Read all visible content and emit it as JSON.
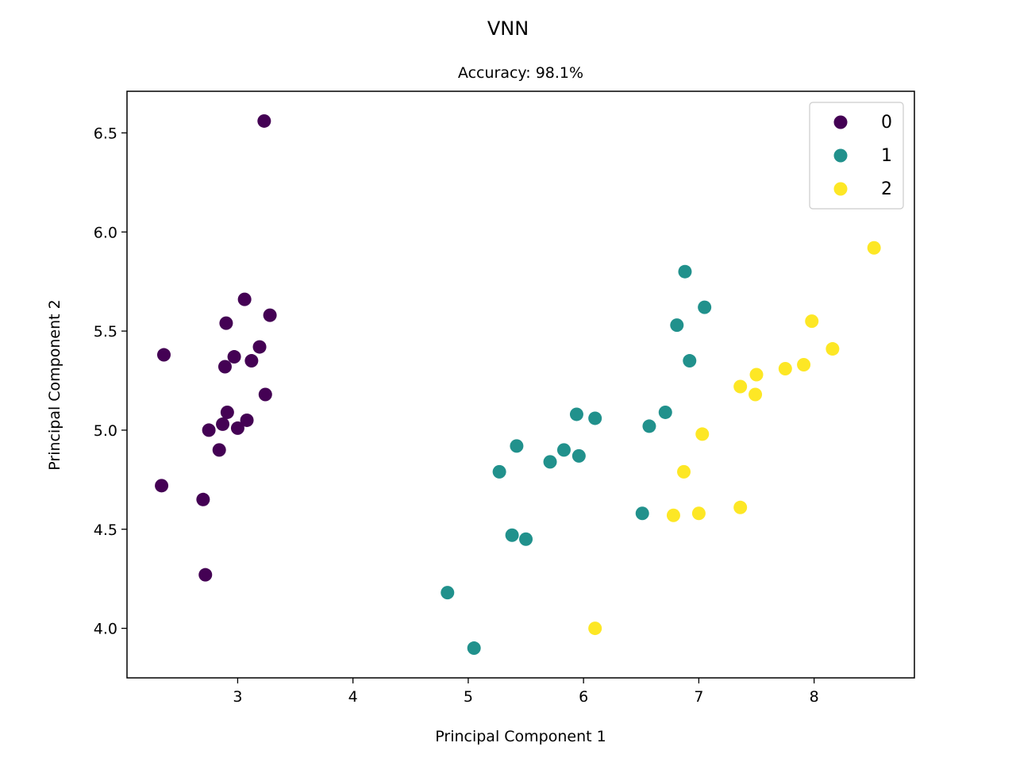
{
  "figure": {
    "suptitle": "VNN",
    "title": "Accuracy: 98.1%"
  },
  "chart_data": {
    "type": "scatter",
    "title": "Accuracy: 98.1%",
    "suptitle": "VNN",
    "xlabel": "Principal Component 1",
    "ylabel": "Principal Component 2",
    "xlim": [
      2.04,
      8.87
    ],
    "ylim": [
      3.75,
      6.71
    ],
    "xticks": [
      3,
      4,
      5,
      6,
      7,
      8
    ],
    "xtick_labels": [
      "3",
      "4",
      "5",
      "6",
      "7",
      "8"
    ],
    "yticks": [
      4.0,
      4.5,
      5.0,
      5.5,
      6.0,
      6.5
    ],
    "ytick_labels": [
      "4.0",
      "4.5",
      "5.0",
      "5.5",
      "6.0",
      "6.5"
    ],
    "grid": false,
    "legend_position": "top-right",
    "series": [
      {
        "name": "0",
        "color": "#440154",
        "points": [
          [
            3.23,
            6.56
          ],
          [
            2.36,
            5.38
          ],
          [
            3.06,
            5.66
          ],
          [
            3.28,
            5.58
          ],
          [
            2.9,
            5.54
          ],
          [
            2.97,
            5.37
          ],
          [
            3.19,
            5.42
          ],
          [
            3.12,
            5.35
          ],
          [
            2.89,
            5.32
          ],
          [
            3.24,
            5.18
          ],
          [
            2.91,
            5.09
          ],
          [
            3.08,
            5.05
          ],
          [
            2.87,
            5.03
          ],
          [
            2.75,
            5.0
          ],
          [
            3.0,
            5.01
          ],
          [
            2.84,
            4.9
          ],
          [
            2.34,
            4.72
          ],
          [
            2.7,
            4.65
          ],
          [
            2.72,
            4.27
          ]
        ]
      },
      {
        "name": "1",
        "color": "#21918c",
        "points": [
          [
            6.88,
            5.8
          ],
          [
            7.05,
            5.62
          ],
          [
            6.81,
            5.53
          ],
          [
            6.92,
            5.35
          ],
          [
            6.71,
            5.09
          ],
          [
            6.57,
            5.02
          ],
          [
            5.94,
            5.08
          ],
          [
            6.1,
            5.06
          ],
          [
            5.42,
            4.92
          ],
          [
            5.83,
            4.9
          ],
          [
            5.96,
            4.87
          ],
          [
            5.71,
            4.84
          ],
          [
            5.27,
            4.79
          ],
          [
            6.51,
            4.58
          ],
          [
            5.38,
            4.47
          ],
          [
            5.5,
            4.45
          ],
          [
            4.82,
            4.18
          ],
          [
            5.05,
            3.9
          ]
        ]
      },
      {
        "name": "2",
        "color": "#fde725",
        "points": [
          [
            8.52,
            5.92
          ],
          [
            7.98,
            5.55
          ],
          [
            8.16,
            5.41
          ],
          [
            7.91,
            5.33
          ],
          [
            7.75,
            5.31
          ],
          [
            7.5,
            5.28
          ],
          [
            7.36,
            5.22
          ],
          [
            7.49,
            5.18
          ],
          [
            7.03,
            4.98
          ],
          [
            6.87,
            4.79
          ],
          [
            7.36,
            4.61
          ],
          [
            7.0,
            4.58
          ],
          [
            6.78,
            4.57
          ],
          [
            6.1,
            4.0
          ]
        ]
      }
    ]
  }
}
